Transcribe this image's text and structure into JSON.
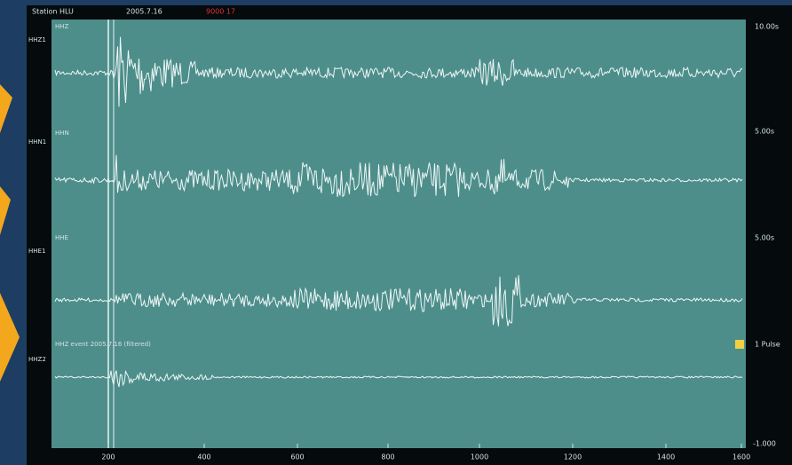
{
  "header": {
    "station": "Station HLU",
    "date": "2005.7.16",
    "alert": "9000 17"
  },
  "channels": [
    {
      "side_label": "HHZ1",
      "trace_label": "HHZ",
      "scale_label": "10.00s"
    },
    {
      "side_label": "HHN1",
      "trace_label": "HHN",
      "scale_label": "5.00s"
    },
    {
      "side_label": "HHE1",
      "trace_label": "HHE",
      "scale_label": "5.00s"
    },
    {
      "side_label": "HHZ2",
      "trace_label": "HHZ event 2005.7.16 (filtered)",
      "scale_label": "1 Pulse"
    }
  ],
  "x_axis": {
    "labels": [
      "200",
      "400",
      "600",
      "800",
      "1000",
      "1200",
      "1400",
      "1600"
    ]
  },
  "footer_scale": "-1.000"
}
